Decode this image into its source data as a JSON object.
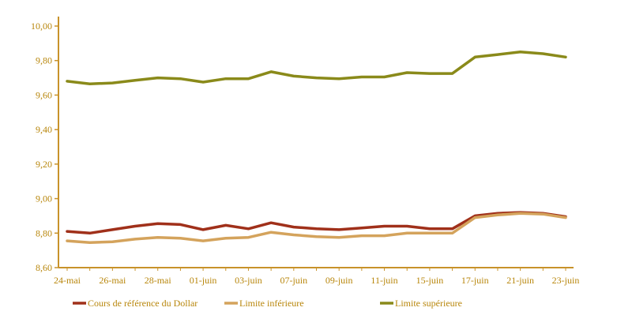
{
  "chart_data": {
    "type": "line",
    "title": "",
    "xlabel": "",
    "ylabel": "",
    "ylim": [
      8.6,
      10.0
    ],
    "yticks": [
      "8,60",
      "8,80",
      "9,00",
      "9,20",
      "9,40",
      "9,60",
      "9,80",
      "10,00"
    ],
    "ytick_values": [
      8.6,
      8.8,
      9.0,
      9.2,
      9.4,
      9.6,
      9.8,
      10.0
    ],
    "x_tick_labels": [
      "24-mai",
      "26-mai",
      "28-mai",
      "01-juin",
      "03-juin",
      "07-juin",
      "09-juin",
      "11-juin",
      "15-juin",
      "17-juin",
      "21-juin",
      "23-juin"
    ],
    "x_count": 23,
    "series": [
      {
        "name": "Cours de référence du Dollar",
        "color": "#a0301a",
        "values": [
          8.81,
          8.8,
          8.82,
          8.84,
          8.855,
          8.85,
          8.82,
          8.845,
          8.825,
          8.86,
          8.835,
          8.825,
          8.82,
          8.83,
          8.84,
          8.84,
          8.825,
          8.825,
          8.9,
          8.915,
          8.92,
          8.915,
          8.895
        ]
      },
      {
        "name": "Limite inférieure",
        "color": "#d4a35c",
        "values": [
          8.755,
          8.745,
          8.75,
          8.765,
          8.775,
          8.77,
          8.755,
          8.77,
          8.775,
          8.805,
          8.79,
          8.78,
          8.775,
          8.785,
          8.785,
          8.8,
          8.8,
          8.8,
          8.89,
          8.905,
          8.915,
          8.91,
          8.89
        ]
      },
      {
        "name": "Limite supérieure",
        "color": "#8a8a1a",
        "values": [
          9.68,
          9.665,
          9.67,
          9.685,
          9.7,
          9.695,
          9.675,
          9.695,
          9.695,
          9.735,
          9.71,
          9.7,
          9.695,
          9.705,
          9.705,
          9.73,
          9.725,
          9.725,
          9.82,
          9.835,
          9.85,
          9.84,
          9.82
        ]
      }
    ],
    "legend_position": "bottom",
    "grid": false
  },
  "axis_color": "#c8922a"
}
